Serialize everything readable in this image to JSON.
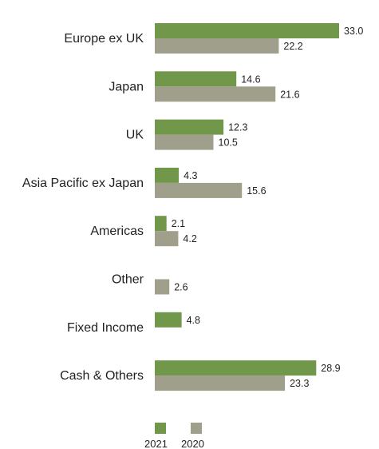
{
  "chart_data": {
    "type": "bar",
    "orientation": "horizontal",
    "categories": [
      "Europe ex UK",
      "Japan",
      "UK",
      "Asia Pacific ex Japan",
      "Americas",
      "Other",
      "Fixed Income",
      "Cash & Others"
    ],
    "series": [
      {
        "name": "2021",
        "color": "#70974a",
        "values": [
          33.0,
          14.6,
          12.3,
          4.3,
          2.1,
          null,
          4.8,
          28.9
        ],
        "labels": [
          "33.0",
          "14.6",
          "12.3",
          "4.3",
          "2.1",
          "",
          "4.8",
          "28.9"
        ]
      },
      {
        "name": "2020",
        "color": "#a09f8b",
        "values": [
          22.2,
          21.6,
          10.5,
          15.6,
          4.2,
          2.6,
          null,
          23.3
        ],
        "labels": [
          "22.2",
          "21.6",
          "10.5",
          "15.6",
          "4.2",
          "2.6",
          "",
          "23.3"
        ]
      }
    ],
    "legend": "bottom-left",
    "grid": false,
    "xlim": [
      0,
      33.0
    ]
  }
}
